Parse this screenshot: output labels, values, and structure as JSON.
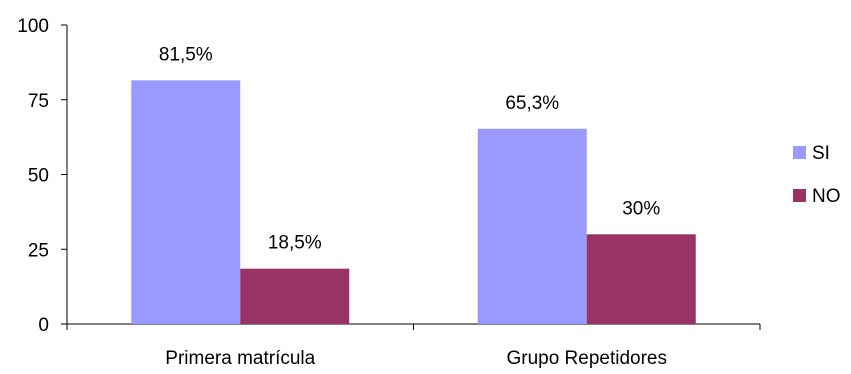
{
  "chart_data": {
    "type": "bar",
    "categories": [
      "Primera matrícula",
      "Grupo Repetidores"
    ],
    "series": [
      {
        "name": "SI",
        "color": "#9999ff",
        "values": [
          81.5,
          65.3
        ],
        "labels": [
          "81,5%",
          "65,3%"
        ]
      },
      {
        "name": "NO",
        "color": "#993366",
        "values": [
          18.5,
          30
        ],
        "labels": [
          "18,5%",
          "30%"
        ]
      }
    ],
    "ylim": [
      0,
      100
    ],
    "yticks": [
      0,
      25,
      50,
      75,
      100
    ],
    "ytick_labels": [
      "0",
      "25",
      "50",
      "75",
      "100"
    ],
    "grid": false,
    "legend_position": "right",
    "title": "",
    "xlabel": "",
    "ylabel": ""
  }
}
